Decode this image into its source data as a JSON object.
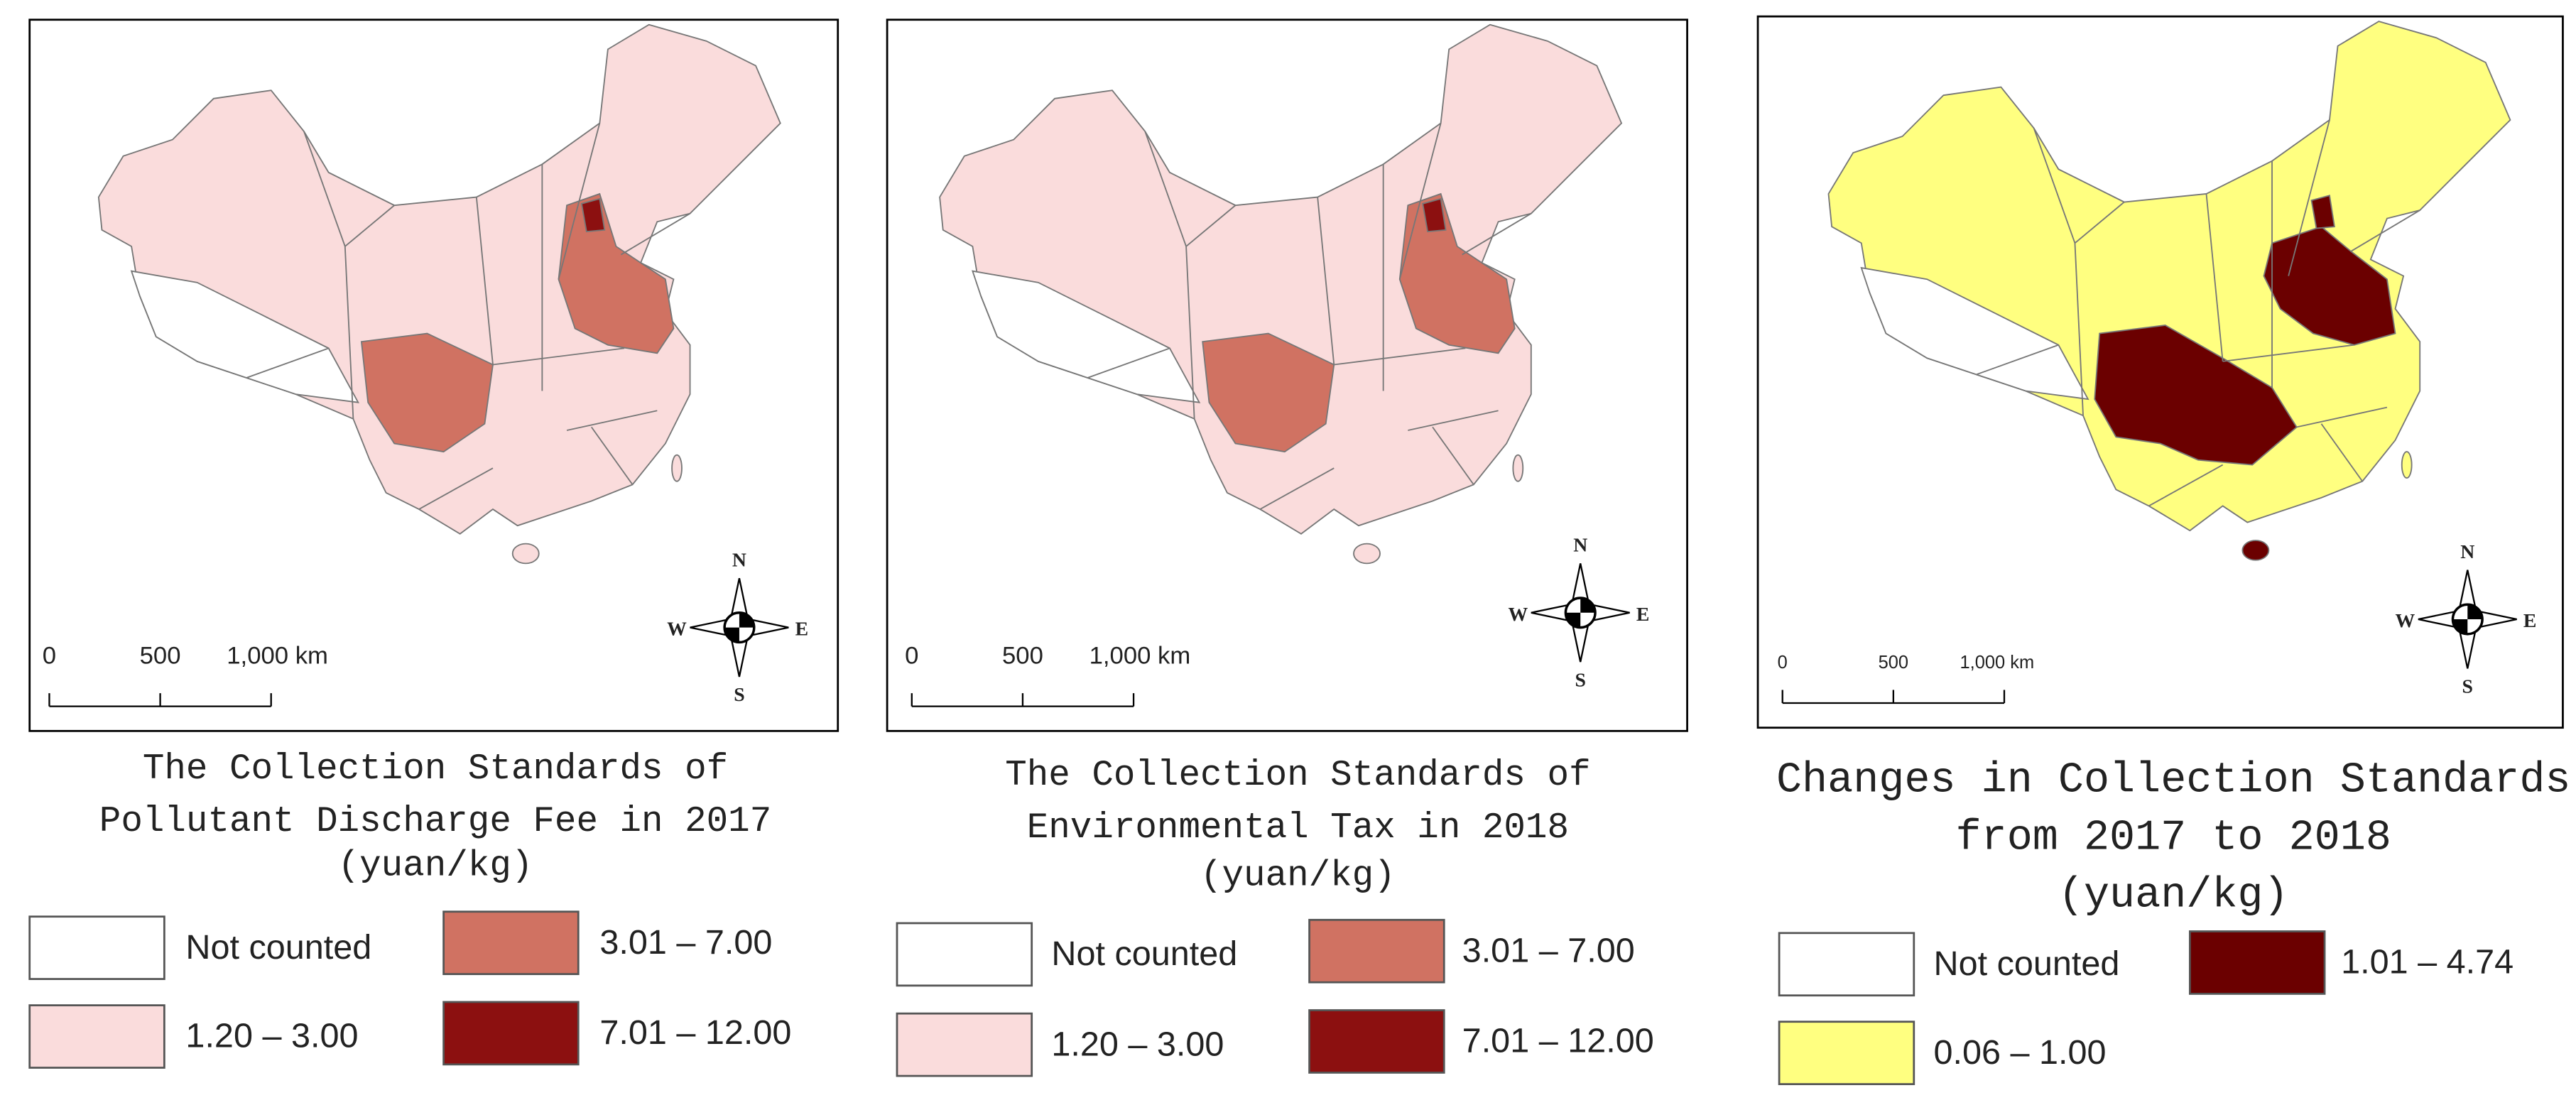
{
  "panels": [
    {
      "caption": [
        "The  Collection Standards of",
        "Pollutant Discharge Fee in 2017",
        "(yuan/kg)"
      ],
      "legend": [
        {
          "label": "Not counted",
          "color": "#ffffff"
        },
        {
          "label": "3.01 – 7.00",
          "color": "#d07262"
        },
        {
          "label": "1.20 – 3.00",
          "color": "#fadcdc"
        },
        {
          "label": "7.01 – 12.00",
          "color": "#8c1010"
        }
      ],
      "scale": [
        "0",
        "500",
        "1,000 km"
      ],
      "compass": [
        "N",
        "S",
        "W",
        "E"
      ]
    },
    {
      "caption": [
        "The Collection Standards of",
        "Environmental Tax in 2018",
        "(yuan/kg)"
      ],
      "legend": [
        {
          "label": "Not counted",
          "color": "#ffffff"
        },
        {
          "label": "3.01 – 7.00",
          "color": "#d07262"
        },
        {
          "label": "1.20 – 3.00",
          "color": "#fadcdc"
        },
        {
          "label": "7.01 – 12.00",
          "color": "#8c1010"
        }
      ],
      "scale": [
        "0",
        "500",
        "1,000 km"
      ],
      "compass": [
        "N",
        "S",
        "W",
        "E"
      ]
    },
    {
      "caption": [
        "Changes in Collection Standards",
        "from 2017 to 2018",
        "(yuan/kg)"
      ],
      "legend": [
        {
          "label": "Not counted",
          "color": "#ffffff"
        },
        {
          "label": "1.01 – 4.74",
          "color": "#6b0000"
        },
        {
          "label": "0.06 – 1.00",
          "color": "#ffff80"
        }
      ],
      "scale": [
        "0",
        "500",
        "1,000 km"
      ],
      "compass": [
        "N",
        "S",
        "W",
        "E"
      ]
    }
  ]
}
